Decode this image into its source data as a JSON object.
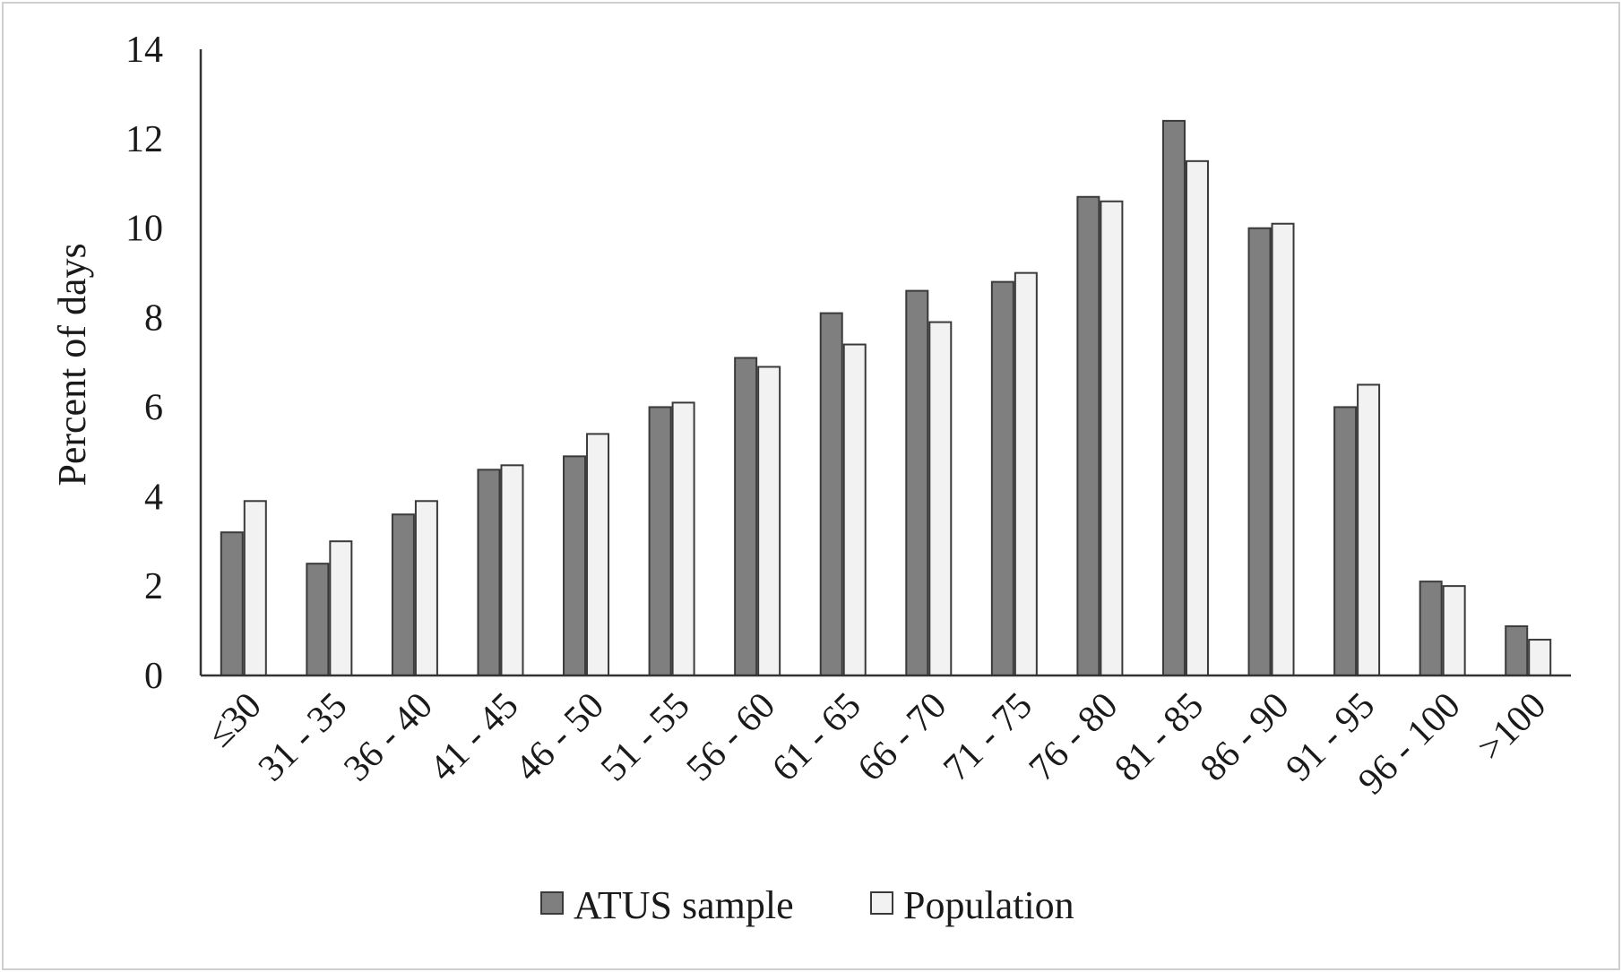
{
  "chart_data": {
    "type": "bar",
    "title": "",
    "xlabel": "",
    "ylabel": "Percent of days",
    "ylim": [
      0,
      14
    ],
    "yticks": [
      0,
      2,
      4,
      6,
      8,
      10,
      12,
      14
    ],
    "grid": false,
    "legend_position": "bottom",
    "categories": [
      "≤30",
      "31 - 35",
      "36 - 40",
      "41 - 45",
      "46 - 50",
      "51 - 55",
      "56 - 60",
      "61 - 65",
      "66 - 70",
      "71 - 75",
      "76 - 80",
      "81 - 85",
      "86 - 90",
      "91 - 95",
      "96 - 100",
      ">100"
    ],
    "series": [
      {
        "name": "ATUS sample",
        "color": "#7f7f7f",
        "values": [
          3.2,
          2.5,
          3.6,
          4.6,
          4.9,
          6.0,
          7.1,
          8.1,
          8.6,
          8.8,
          10.7,
          12.4,
          10.0,
          6.0,
          2.1,
          1.1
        ]
      },
      {
        "name": "Population",
        "color": "#f2f2f2",
        "values": [
          3.9,
          3.0,
          3.9,
          4.7,
          5.4,
          6.1,
          6.9,
          7.4,
          7.9,
          9.0,
          10.6,
          11.5,
          10.1,
          6.5,
          2.0,
          0.8
        ]
      }
    ]
  }
}
